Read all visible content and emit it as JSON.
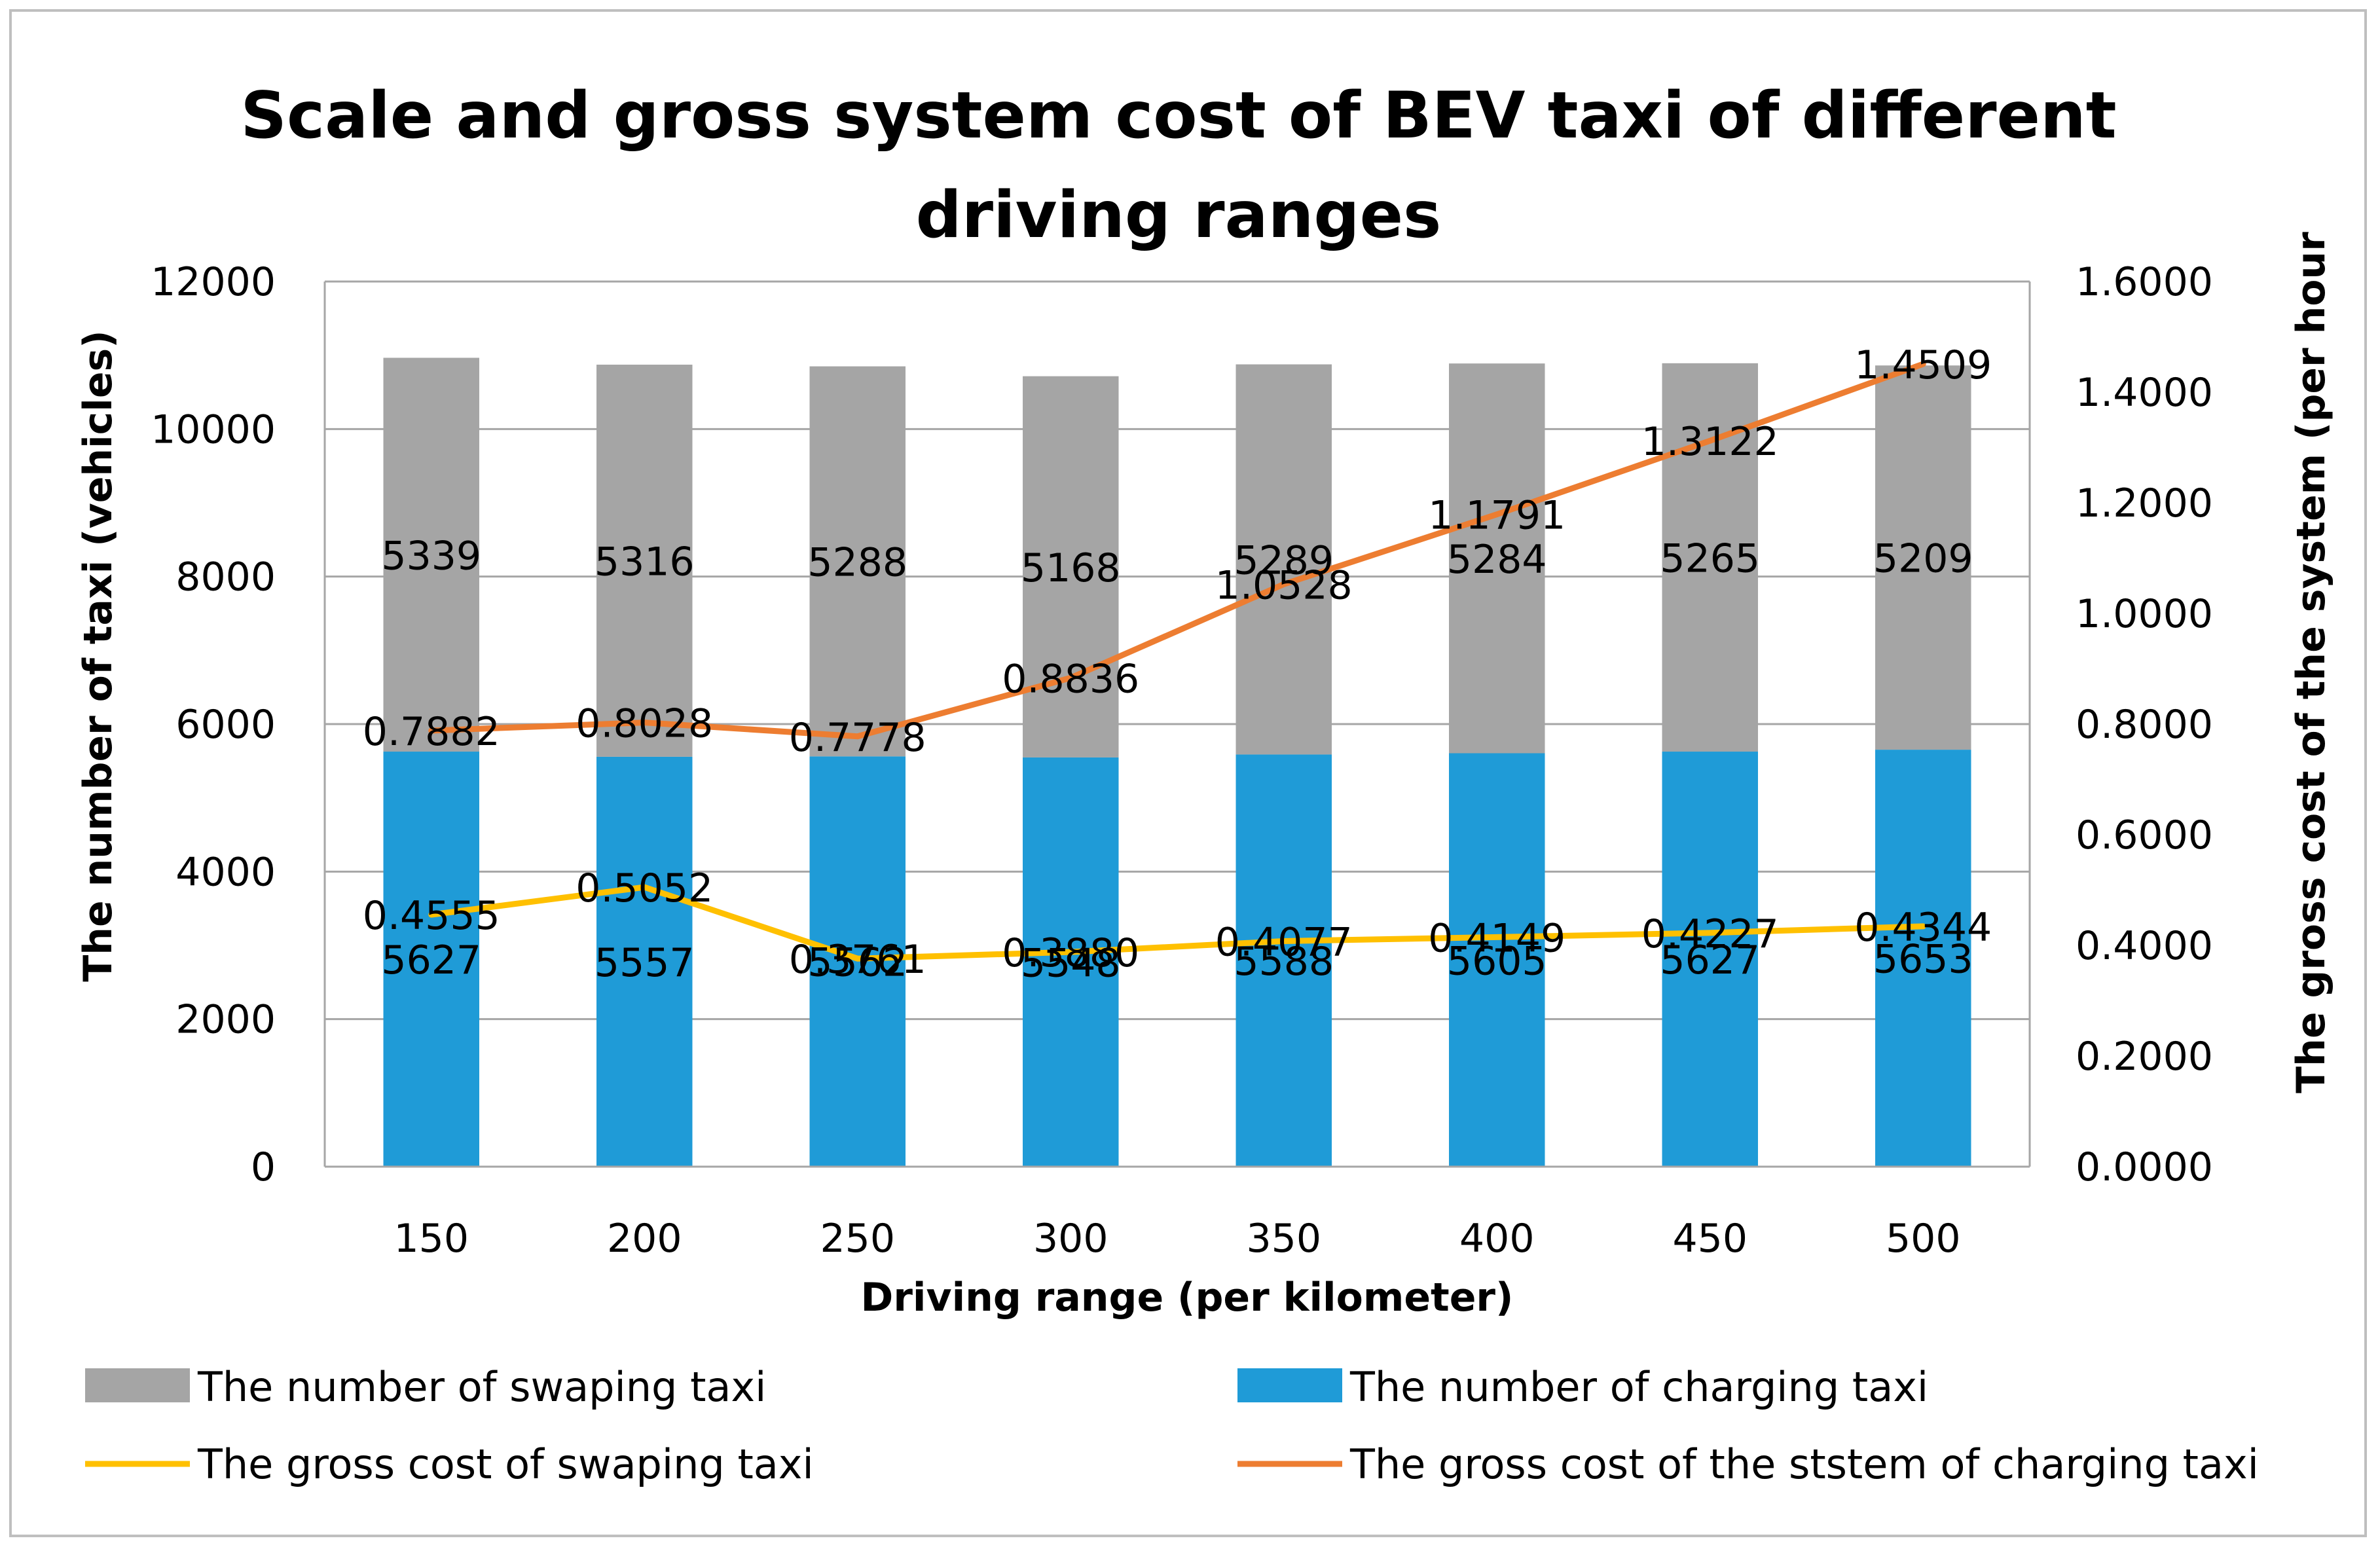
{
  "chart_data": {
    "type": "bar",
    "stacked": true,
    "title": "Scale and gross system cost of BEV taxi of different driving ranges",
    "title_lines": [
      "Scale and gross system cost of BEV taxi of different",
      "driving ranges"
    ],
    "xlabel": "Driving range (per kilometer)",
    "ylabel": "The number of taxi (vehicles)",
    "y2label": "The gross cost of the system (per hour",
    "categories": [
      "150",
      "200",
      "250",
      "300",
      "350",
      "400",
      "450",
      "500"
    ],
    "ylim": [
      0,
      12000
    ],
    "y2lim": [
      0,
      1.6
    ],
    "yticks": [
      "0",
      "2000",
      "4000",
      "6000",
      "8000",
      "10000",
      "12000"
    ],
    "y2ticks": [
      "0.0000",
      "0.2000",
      "0.4000",
      "0.6000",
      "0.8000",
      "1.0000",
      "1.2000",
      "1.4000",
      "1.6000"
    ],
    "series": [
      {
        "name": "The number of charging taxi",
        "kind": "bar",
        "axis": "left",
        "color": "#1f9bd7",
        "values": [
          5627,
          5557,
          5562,
          5548,
          5588,
          5605,
          5627,
          5653
        ],
        "labels": [
          "5627",
          "5557",
          "5562",
          "5548",
          "5588",
          "5605",
          "5627",
          "5653"
        ]
      },
      {
        "name": "The number of swaping taxi",
        "kind": "bar",
        "axis": "left",
        "color": "#a5a5a5",
        "values": [
          5339,
          5316,
          5288,
          5168,
          5289,
          5284,
          5265,
          5209
        ],
        "labels": [
          "5339",
          "5316",
          "5288",
          "5168",
          "5289",
          "5284",
          "5265",
          "5209"
        ]
      },
      {
        "name": "The gross cost of swaping taxi",
        "kind": "line",
        "axis": "right",
        "color": "#ffc000",
        "values": [
          0.4555,
          0.5052,
          0.3761,
          0.388,
          0.4077,
          0.4149,
          0.4227,
          0.4344
        ],
        "labels": [
          "0.4555",
          "0.5052",
          "0.3761",
          "0.3880",
          "0.4077",
          "0.4149",
          "0.4227",
          "0.4344"
        ]
      },
      {
        "name": "The gross cost of the ststem of charging taxi",
        "kind": "line",
        "axis": "right",
        "color": "#ed7d31",
        "values": [
          0.7882,
          0.8028,
          0.7778,
          0.8836,
          1.0528,
          1.1791,
          1.3122,
          1.4509
        ],
        "labels": [
          "0.7882",
          "0.8028",
          "0.7778",
          "0.8836",
          "1.0528",
          "1.1791",
          "1.3122",
          "1.4509"
        ]
      }
    ],
    "legend": [
      {
        "label": "The number of swaping taxi",
        "color": "#a5a5a5",
        "kind": "box"
      },
      {
        "label": "The number of charging taxi",
        "color": "#1f9bd7",
        "kind": "box"
      },
      {
        "label": "The gross cost of swaping taxi",
        "color": "#ffc000",
        "kind": "line"
      },
      {
        "label": "The gross cost of the ststem of charging taxi",
        "color": "#ed7d31",
        "kind": "line"
      }
    ],
    "legend_position": "bottom",
    "grid": true
  }
}
